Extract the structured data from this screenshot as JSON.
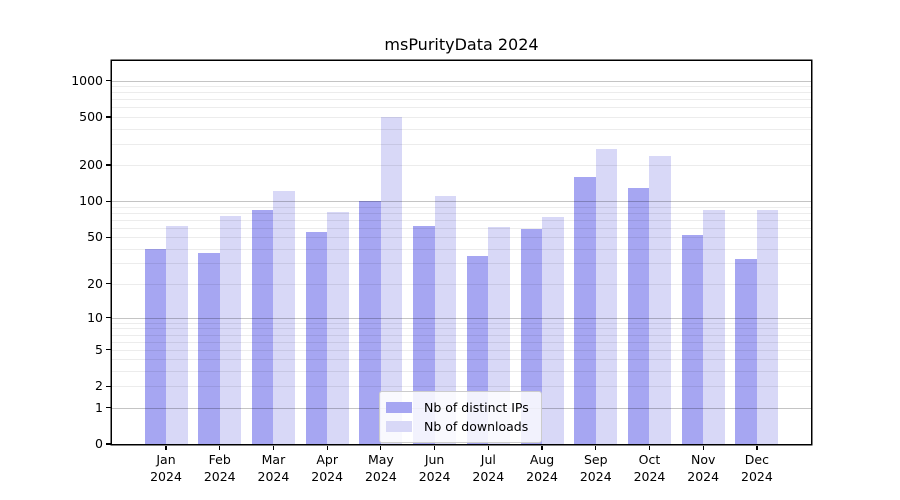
{
  "title": "msPurityData 2024",
  "chart_data": {
    "type": "bar",
    "title": "msPurityData 2024",
    "yscale": "log1p",
    "grid": true,
    "months": [
      "Jan",
      "Feb",
      "Mar",
      "Apr",
      "May",
      "Jun",
      "Jul",
      "Aug",
      "Sep",
      "Oct",
      "Nov",
      "Dec"
    ],
    "x_tick_label_year": "2024",
    "categories": [
      "Jan 2024",
      "Feb 2024",
      "Mar 2024",
      "Apr 2024",
      "May 2024",
      "Jun 2024",
      "Jul 2024",
      "Aug 2024",
      "Sep 2024",
      "Oct 2024",
      "Nov 2024",
      "Dec 2024"
    ],
    "series": [
      {
        "name": "Nb of distinct IPs",
        "color": "#a6a6f2",
        "values": [
          40,
          37,
          85,
          55,
          100,
          62,
          35,
          59,
          160,
          128,
          52,
          33
        ]
      },
      {
        "name": "Nb of downloads",
        "color": "#d8d8f7",
        "values": [
          62,
          75,
          122,
          82,
          500,
          110,
          61,
          74,
          270,
          240,
          85,
          85
        ]
      }
    ],
    "y_ticks": [
      0,
      1,
      2,
      5,
      10,
      20,
      50,
      100,
      200,
      500,
      1000
    ],
    "ylim": [
      0,
      1450
    ],
    "legend_position": "lower center",
    "legend_labels": [
      "Nb of distinct IPs",
      "Nb of downloads"
    ]
  },
  "colors": {
    "series_ips": "#a6a6f2",
    "series_downloads": "#d8d8f7",
    "major_grid": "#c4c4c4",
    "minor_grid": "#ececec",
    "spine": "#000000",
    "background": "#ffffff",
    "legend_border": "#cccccc"
  }
}
